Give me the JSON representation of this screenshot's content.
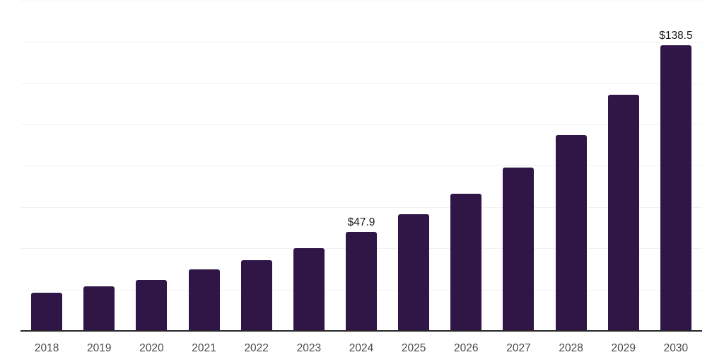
{
  "chart_data": {
    "type": "bar",
    "title": "",
    "xlabel": "",
    "ylabel": "",
    "categories": [
      "2018",
      "2019",
      "2020",
      "2021",
      "2022",
      "2023",
      "2024",
      "2025",
      "2026",
      "2027",
      "2028",
      "2029",
      "2030"
    ],
    "values": [
      18.5,
      21.6,
      24.7,
      29.8,
      34.2,
      40.1,
      47.9,
      56.5,
      66.4,
      79.1,
      94.9,
      114.4,
      138.5
    ],
    "point_labels": [
      "",
      "",
      "",
      "",
      "",
      "",
      "$47.9",
      "",
      "",
      "",
      "",
      "",
      "$138.5"
    ],
    "ylim": [
      0,
      160
    ],
    "grid_step": 20,
    "grid": true,
    "legend": false,
    "colors": {
      "bar": "#301646",
      "gridline": "#F2F2F2",
      "axis_line": "#262626",
      "tick_label": "#4A4A4A",
      "point_label": "#1A1A1A",
      "background": "#FFFFFF"
    }
  }
}
